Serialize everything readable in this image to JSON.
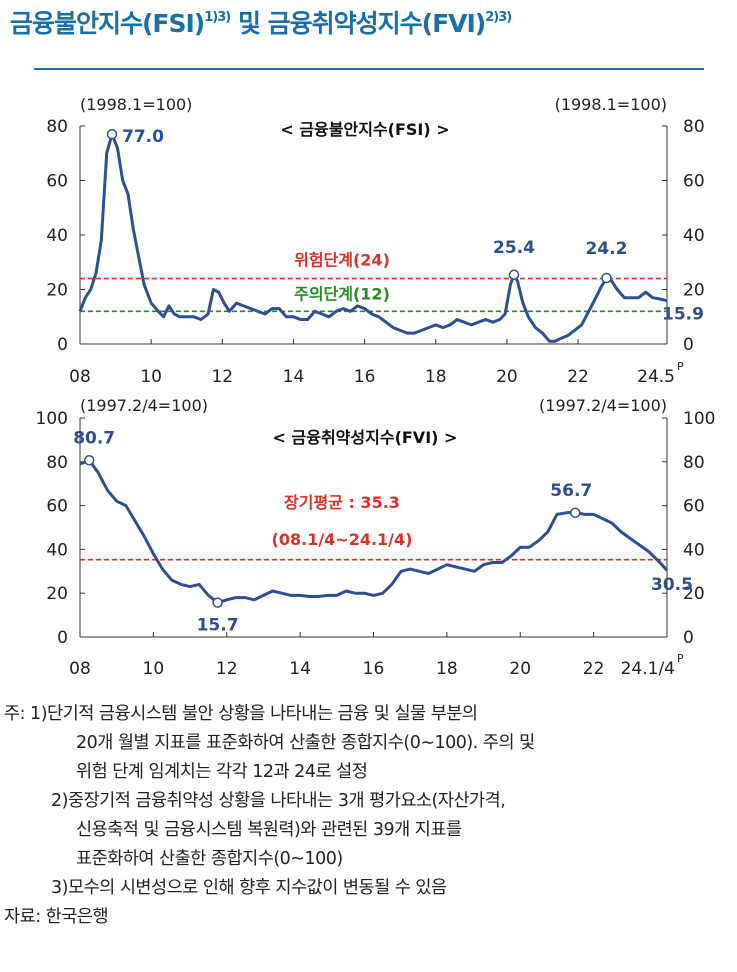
{
  "header": {
    "title_fsi": "금융불안지수(FSI)",
    "title_fsi_sup": "1)3)",
    "title_and": " 및 ",
    "title_fvi": "금융취약성지수(FVI)",
    "title_fvi_sup": "2)3)"
  },
  "colors": {
    "title": "#1a6fa3",
    "series": "#2f4f8f",
    "red_line": "#d8322a",
    "green_line": "#2a8a2a"
  },
  "chart_data": [
    {
      "type": "line",
      "title": "< 금융불안지수(FSI) >",
      "base_left": "(1998.1=100)",
      "base_right": "(1998.1=100)",
      "xlim": [
        2008,
        2024.5
      ],
      "ylim": [
        0,
        80
      ],
      "yticks": [
        "0",
        "20",
        "40",
        "60",
        "80"
      ],
      "xticks": [
        {
          "v": 2008,
          "label": "08"
        },
        {
          "v": 2010,
          "label": "10"
        },
        {
          "v": 2012,
          "label": "12"
        },
        {
          "v": 2014,
          "label": "14"
        },
        {
          "v": 2016,
          "label": "16"
        },
        {
          "v": 2018,
          "label": "18"
        },
        {
          "v": 2020,
          "label": "20"
        },
        {
          "v": 2022,
          "label": "22"
        },
        {
          "v": 2024.5,
          "label": "24.5"
        }
      ],
      "x_last_suffix": "P",
      "thresholds": [
        {
          "name": "위험단계(24)",
          "value": 24,
          "color": "#d8322a"
        },
        {
          "name": "주의단계(12)",
          "value": 12,
          "color": "#2a8a2a"
        }
      ],
      "annotations": [
        {
          "label": "77.0",
          "x": 2008.9,
          "y": 77.0,
          "marker": true
        },
        {
          "label": "25.4",
          "x": 2020.2,
          "y": 25.4,
          "marker": true
        },
        {
          "label": "24.2",
          "x": 2022.8,
          "y": 24.2,
          "marker": true
        },
        {
          "label": "15.9",
          "x": 2024.5,
          "y": 15.9,
          "marker": false
        }
      ],
      "series": [
        {
          "name": "FSI",
          "x": [
            2008.0,
            2008.15,
            2008.3,
            2008.45,
            2008.6,
            2008.75,
            2008.9,
            2009.05,
            2009.2,
            2009.35,
            2009.5,
            2009.65,
            2009.8,
            2010.0,
            2010.2,
            2010.35,
            2010.5,
            2010.65,
            2010.8,
            2011.0,
            2011.2,
            2011.4,
            2011.6,
            2011.75,
            2011.9,
            2012.05,
            2012.2,
            2012.4,
            2012.6,
            2012.8,
            2013.0,
            2013.2,
            2013.4,
            2013.6,
            2013.8,
            2014.0,
            2014.2,
            2014.4,
            2014.6,
            2014.8,
            2015.0,
            2015.2,
            2015.4,
            2015.6,
            2015.8,
            2016.0,
            2016.2,
            2016.4,
            2016.6,
            2016.8,
            2017.0,
            2017.2,
            2017.4,
            2017.6,
            2017.8,
            2018.0,
            2018.2,
            2018.4,
            2018.6,
            2018.8,
            2019.0,
            2019.2,
            2019.4,
            2019.6,
            2019.8,
            2019.95,
            2020.1,
            2020.2,
            2020.3,
            2020.45,
            2020.6,
            2020.8,
            2021.0,
            2021.2,
            2021.35,
            2021.5,
            2021.7,
            2021.9,
            2022.1,
            2022.3,
            2022.5,
            2022.65,
            2022.8,
            2022.95,
            2023.1,
            2023.3,
            2023.5,
            2023.7,
            2023.9,
            2024.1,
            2024.3,
            2024.5
          ],
          "y": [
            12,
            17,
            20,
            26,
            38,
            70,
            77,
            72,
            60,
            55,
            42,
            32,
            22,
            15,
            12,
            10,
            14,
            11,
            10,
            10,
            10,
            9,
            11,
            20,
            19,
            15,
            12,
            15,
            14,
            13,
            12,
            11,
            13,
            13,
            10,
            10,
            9,
            9,
            12,
            11,
            10,
            12,
            13,
            12,
            14,
            13,
            11,
            10,
            8,
            6,
            5,
            4,
            4,
            5,
            6,
            7,
            6,
            7,
            9,
            8,
            7,
            8,
            9,
            8,
            9,
            11,
            22,
            25.4,
            23,
            15,
            10,
            6,
            4,
            1,
            1,
            2,
            3,
            5,
            7,
            12,
            17,
            21,
            24.2,
            23,
            20,
            17,
            17,
            17,
            19,
            17,
            16.5,
            15.9
          ]
        }
      ]
    },
    {
      "type": "line",
      "title": "< 금융취약성지수(FVI) >",
      "base_left": "(1997.2/4=100)",
      "base_right": "(1997.2/4=100)",
      "xlim": [
        2008,
        2024.0
      ],
      "ylim": [
        0,
        100
      ],
      "yticks": [
        "0",
        "20",
        "40",
        "60",
        "80",
        "100"
      ],
      "xticks": [
        {
          "v": 2008,
          "label": "08"
        },
        {
          "v": 2010,
          "label": "10"
        },
        {
          "v": 2012,
          "label": "12"
        },
        {
          "v": 2014,
          "label": "14"
        },
        {
          "v": 2016,
          "label": "16"
        },
        {
          "v": 2018,
          "label": "18"
        },
        {
          "v": 2020,
          "label": "20"
        },
        {
          "v": 2022,
          "label": "22"
        },
        {
          "v": 2024.0,
          "label": "24.1/4"
        }
      ],
      "x_last_suffix": "P",
      "long_run_average": {
        "label": "장기평균 : 35.3",
        "period": "(08.1/4~24.1/4)",
        "value": 35.3,
        "color": "#d8322a"
      },
      "annotations": [
        {
          "label": "80.7",
          "x": 2008.25,
          "y": 80.7,
          "marker": true
        },
        {
          "label": "15.7",
          "x": 2011.75,
          "y": 15.7,
          "marker": true
        },
        {
          "label": "56.7",
          "x": 2021.5,
          "y": 56.7,
          "marker": true
        },
        {
          "label": "30.5",
          "x": 2024.0,
          "y": 30.5,
          "marker": false
        }
      ],
      "series": [
        {
          "name": "FVI",
          "x": [
            2008.0,
            2008.25,
            2008.5,
            2008.75,
            2009.0,
            2009.25,
            2009.5,
            2009.75,
            2010.0,
            2010.25,
            2010.5,
            2010.75,
            2011.0,
            2011.25,
            2011.5,
            2011.75,
            2012.0,
            2012.25,
            2012.5,
            2012.75,
            2013.0,
            2013.25,
            2013.5,
            2013.75,
            2014.0,
            2014.25,
            2014.5,
            2014.75,
            2015.0,
            2015.25,
            2015.5,
            2015.75,
            2016.0,
            2016.25,
            2016.5,
            2016.75,
            2017.0,
            2017.25,
            2017.5,
            2017.75,
            2018.0,
            2018.25,
            2018.5,
            2018.75,
            2019.0,
            2019.25,
            2019.5,
            2019.75,
            2020.0,
            2020.25,
            2020.5,
            2020.75,
            2021.0,
            2021.25,
            2021.5,
            2021.75,
            2022.0,
            2022.25,
            2022.5,
            2022.75,
            2023.0,
            2023.25,
            2023.5,
            2023.75,
            2024.0
          ],
          "y": [
            79,
            80.7,
            75,
            67,
            62,
            60,
            53,
            46,
            38,
            31,
            26,
            24,
            23,
            24,
            19,
            15.7,
            17,
            18,
            18,
            17,
            19,
            21,
            20,
            19,
            19,
            18.5,
            18.5,
            19,
            19,
            21,
            20,
            20,
            19,
            20,
            24,
            30,
            31,
            30,
            29,
            31,
            33,
            32,
            31,
            30,
            33,
            34,
            34,
            37,
            41,
            41,
            44,
            48,
            56,
            56.7,
            57,
            56,
            56,
            54,
            52,
            48,
            45,
            42,
            39,
            35,
            30.5
          ]
        }
      ]
    }
  ],
  "notes": [
    {
      "prefix": "주: 1) ",
      "lines": [
        "단기적 금융시스템 불안 상황을 나타내는 금융 및 실물 부분의",
        "20개 월별 지표를 표준화하여 산출한 종합지수(0∼100). 주의 및",
        "위험 단계 임계치는 각각 12과 24로 설정"
      ]
    },
    {
      "prefix": "2) ",
      "lines": [
        "중장기적 금융취약성 상황을 나타내는 3개 평가요소(자산가격,",
        "신용축적 및 금융시스템 복원력)와 관련된 39개 지표를",
        "표준화하여 산출한 종합지수(0~100)"
      ]
    },
    {
      "prefix": "3) ",
      "lines": [
        "모수의 시변성으로 인해 향후 지수값이 변동될 수 있음"
      ]
    }
  ],
  "source": "자료: 한국은행"
}
